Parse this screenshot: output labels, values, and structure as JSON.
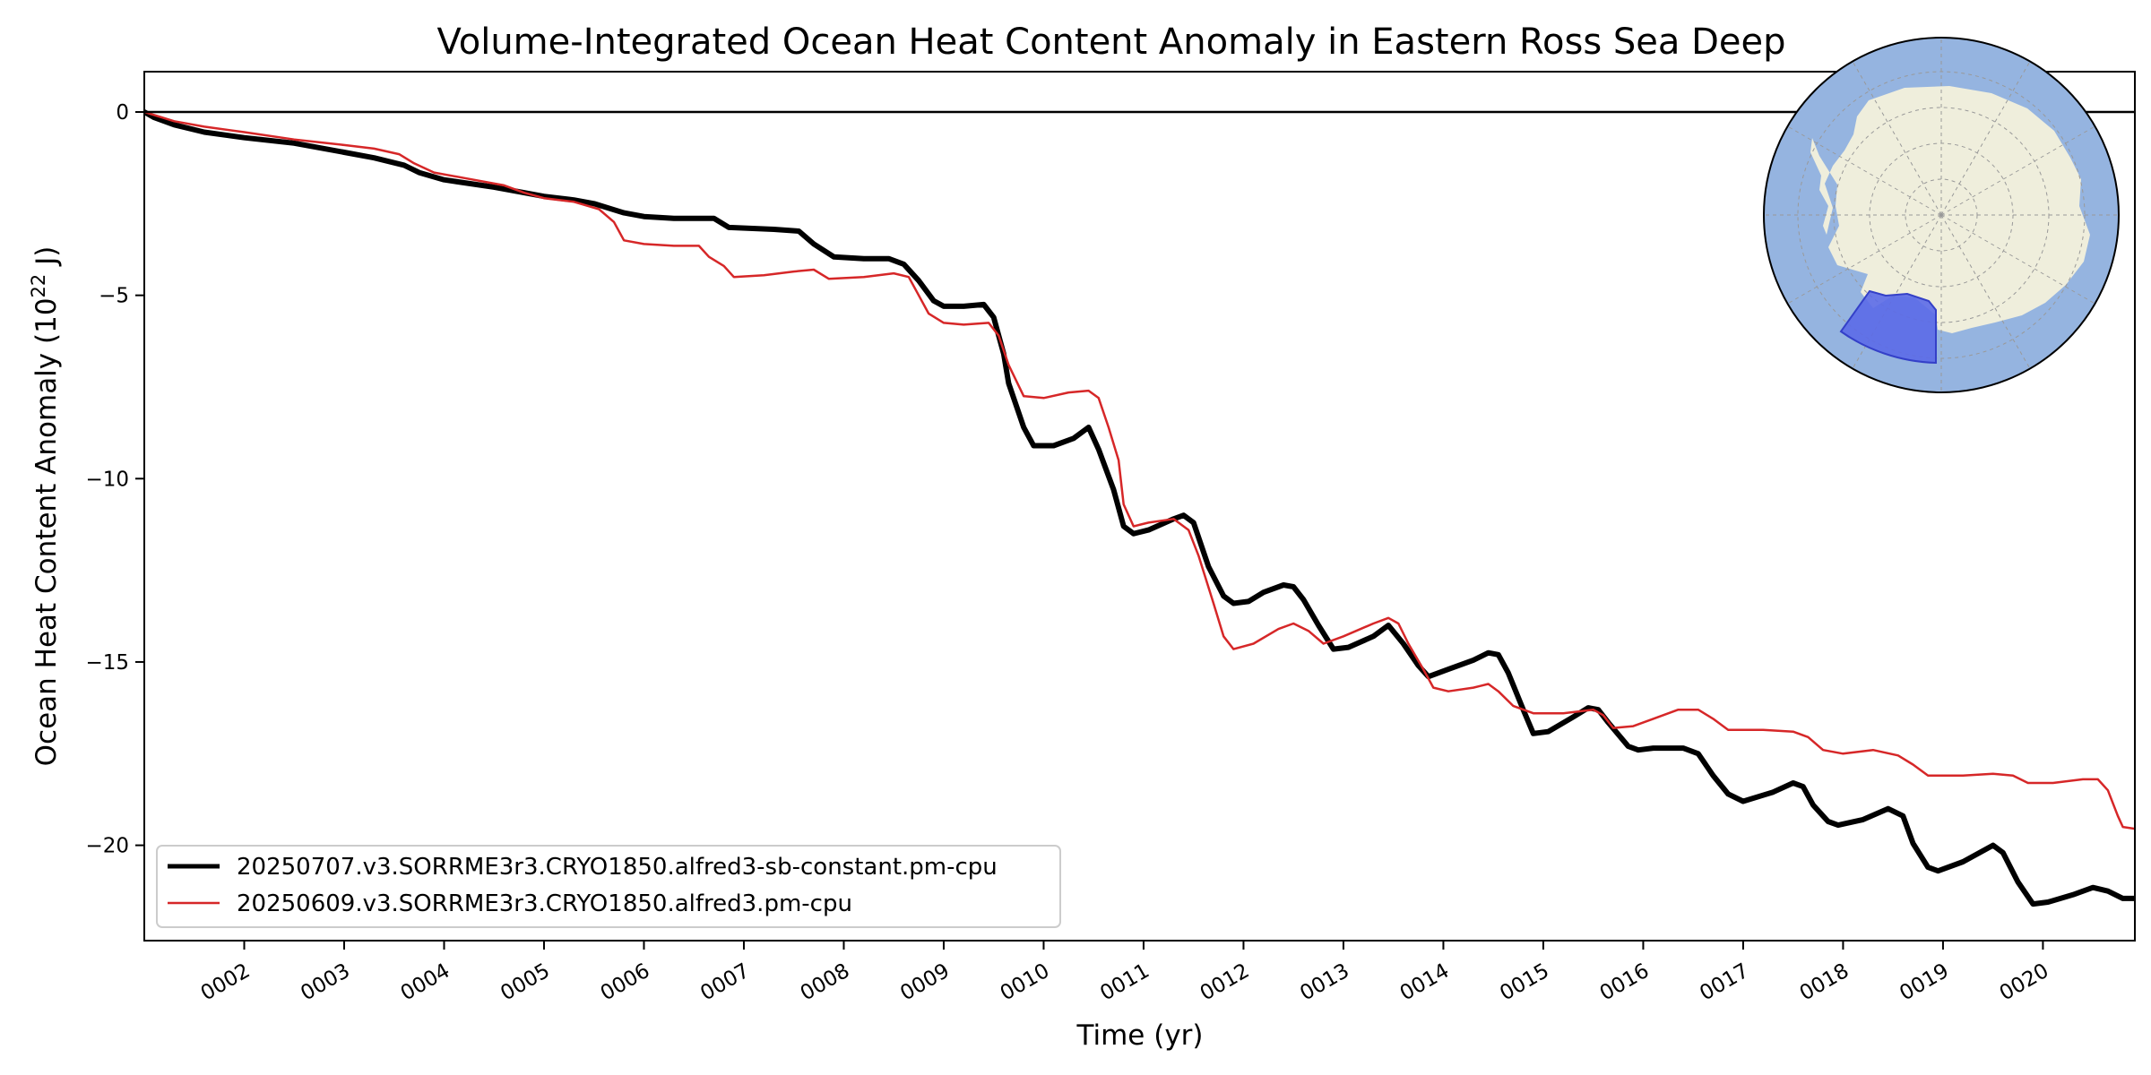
{
  "chart_data": {
    "type": "line",
    "title": "Volume-Integrated Ocean Heat Content Anomaly in Eastern Ross Sea Deep",
    "xlabel": "Time (yr)",
    "ylabel": "Ocean Heat Content Anomaly (10",
    "ylabel_exponent": "22",
    "ylabel_unit": " J)",
    "xlim": [
      1.0,
      20.92
    ],
    "ylim": [
      -22.6,
      1.1
    ],
    "x_ticks": [
      {
        "value": 2,
        "label": "0002"
      },
      {
        "value": 3,
        "label": "0003"
      },
      {
        "value": 4,
        "label": "0004"
      },
      {
        "value": 5,
        "label": "0005"
      },
      {
        "value": 6,
        "label": "0006"
      },
      {
        "value": 7,
        "label": "0007"
      },
      {
        "value": 8,
        "label": "0008"
      },
      {
        "value": 9,
        "label": "0009"
      },
      {
        "value": 10,
        "label": "0010"
      },
      {
        "value": 11,
        "label": "0011"
      },
      {
        "value": 12,
        "label": "0012"
      },
      {
        "value": 13,
        "label": "0013"
      },
      {
        "value": 14,
        "label": "0014"
      },
      {
        "value": 15,
        "label": "0015"
      },
      {
        "value": 16,
        "label": "0016"
      },
      {
        "value": 17,
        "label": "0017"
      },
      {
        "value": 18,
        "label": "0018"
      },
      {
        "value": 19,
        "label": "0019"
      },
      {
        "value": 20,
        "label": "0020"
      }
    ],
    "y_ticks": [
      {
        "value": 0,
        "label": "0"
      },
      {
        "value": -5,
        "label": "−5"
      },
      {
        "value": -10,
        "label": "−10"
      },
      {
        "value": -15,
        "label": "−15"
      },
      {
        "value": -20,
        "label": "−20"
      }
    ],
    "zero_line": true,
    "grid": false,
    "legend_position": "lower-left",
    "inset_map": {
      "projection": "south-polar-stereographic",
      "highlighted_region": "Eastern Ross Sea Deep"
    },
    "colors": {
      "ocean": "#95b4e0",
      "land": "#efeedc",
      "region": "#5b6ae8",
      "series1": "#000000",
      "series2": "#d62728"
    },
    "series": [
      {
        "name": "20250707.v3.SORRME3r3.CRYO1850.alfred3-sb-constant.pm-cpu",
        "color": "#000000",
        "points": [
          [
            1.0,
            0.0
          ],
          [
            1.1,
            -0.15
          ],
          [
            1.3,
            -0.35
          ],
          [
            1.6,
            -0.55
          ],
          [
            2.0,
            -0.7
          ],
          [
            2.5,
            -0.85
          ],
          [
            3.0,
            -1.1
          ],
          [
            3.3,
            -1.25
          ],
          [
            3.6,
            -1.45
          ],
          [
            3.75,
            -1.65
          ],
          [
            4.0,
            -1.85
          ],
          [
            4.5,
            -2.05
          ],
          [
            4.8,
            -2.2
          ],
          [
            5.0,
            -2.3
          ],
          [
            5.3,
            -2.4
          ],
          [
            5.5,
            -2.5
          ],
          [
            5.8,
            -2.75
          ],
          [
            6.0,
            -2.85
          ],
          [
            6.3,
            -2.9
          ],
          [
            6.7,
            -2.9
          ],
          [
            6.85,
            -3.15
          ],
          [
            7.3,
            -3.2
          ],
          [
            7.55,
            -3.25
          ],
          [
            7.7,
            -3.6
          ],
          [
            7.9,
            -3.95
          ],
          [
            8.2,
            -4.0
          ],
          [
            8.45,
            -4.0
          ],
          [
            8.6,
            -4.15
          ],
          [
            8.75,
            -4.6
          ],
          [
            8.9,
            -5.15
          ],
          [
            9.0,
            -5.3
          ],
          [
            9.2,
            -5.3
          ],
          [
            9.4,
            -5.25
          ],
          [
            9.5,
            -5.6
          ],
          [
            9.6,
            -6.6
          ],
          [
            9.65,
            -7.4
          ],
          [
            9.8,
            -8.6
          ],
          [
            9.9,
            -9.1
          ],
          [
            10.1,
            -9.1
          ],
          [
            10.3,
            -8.9
          ],
          [
            10.45,
            -8.6
          ],
          [
            10.55,
            -9.2
          ],
          [
            10.7,
            -10.3
          ],
          [
            10.8,
            -11.3
          ],
          [
            10.9,
            -11.5
          ],
          [
            11.05,
            -11.4
          ],
          [
            11.3,
            -11.1
          ],
          [
            11.4,
            -11.0
          ],
          [
            11.5,
            -11.2
          ],
          [
            11.65,
            -12.4
          ],
          [
            11.8,
            -13.2
          ],
          [
            11.9,
            -13.4
          ],
          [
            12.05,
            -13.35
          ],
          [
            12.2,
            -13.1
          ],
          [
            12.4,
            -12.9
          ],
          [
            12.5,
            -12.95
          ],
          [
            12.6,
            -13.3
          ],
          [
            12.75,
            -14.0
          ],
          [
            12.9,
            -14.65
          ],
          [
            13.05,
            -14.6
          ],
          [
            13.3,
            -14.3
          ],
          [
            13.45,
            -14.0
          ],
          [
            13.6,
            -14.5
          ],
          [
            13.75,
            -15.1
          ],
          [
            13.85,
            -15.4
          ],
          [
            14.05,
            -15.2
          ],
          [
            14.3,
            -14.95
          ],
          [
            14.45,
            -14.75
          ],
          [
            14.55,
            -14.8
          ],
          [
            14.65,
            -15.3
          ],
          [
            14.8,
            -16.3
          ],
          [
            14.9,
            -16.95
          ],
          [
            15.05,
            -16.9
          ],
          [
            15.3,
            -16.5
          ],
          [
            15.45,
            -16.25
          ],
          [
            15.55,
            -16.3
          ],
          [
            15.65,
            -16.65
          ],
          [
            15.85,
            -17.3
          ],
          [
            15.95,
            -17.4
          ],
          [
            16.1,
            -17.35
          ],
          [
            16.4,
            -17.35
          ],
          [
            16.55,
            -17.5
          ],
          [
            16.7,
            -18.1
          ],
          [
            16.85,
            -18.6
          ],
          [
            17.0,
            -18.8
          ],
          [
            17.3,
            -18.55
          ],
          [
            17.5,
            -18.3
          ],
          [
            17.6,
            -18.4
          ],
          [
            17.7,
            -18.9
          ],
          [
            17.85,
            -19.35
          ],
          [
            17.95,
            -19.45
          ],
          [
            18.2,
            -19.3
          ],
          [
            18.45,
            -19.0
          ],
          [
            18.6,
            -19.2
          ],
          [
            18.7,
            -19.95
          ],
          [
            18.85,
            -20.6
          ],
          [
            18.95,
            -20.7
          ],
          [
            19.2,
            -20.45
          ],
          [
            19.5,
            -20.0
          ],
          [
            19.6,
            -20.2
          ],
          [
            19.75,
            -21.0
          ],
          [
            19.9,
            -21.6
          ],
          [
            20.05,
            -21.55
          ],
          [
            20.3,
            -21.35
          ],
          [
            20.5,
            -21.15
          ],
          [
            20.65,
            -21.25
          ],
          [
            20.8,
            -21.45
          ],
          [
            20.92,
            -21.45
          ]
        ]
      },
      {
        "name": "20250609.v3.SORRME3r3.CRYO1850.alfred3.pm-cpu",
        "color": "#d62728",
        "points": [
          [
            1.0,
            0.0
          ],
          [
            1.3,
            -0.25
          ],
          [
            1.6,
            -0.4
          ],
          [
            2.0,
            -0.55
          ],
          [
            2.5,
            -0.75
          ],
          [
            3.0,
            -0.9
          ],
          [
            3.3,
            -1.0
          ],
          [
            3.55,
            -1.15
          ],
          [
            3.7,
            -1.4
          ],
          [
            3.9,
            -1.65
          ],
          [
            4.2,
            -1.8
          ],
          [
            4.6,
            -2.0
          ],
          [
            4.8,
            -2.2
          ],
          [
            5.0,
            -2.35
          ],
          [
            5.3,
            -2.45
          ],
          [
            5.55,
            -2.65
          ],
          [
            5.7,
            -3.0
          ],
          [
            5.8,
            -3.5
          ],
          [
            6.0,
            -3.6
          ],
          [
            6.3,
            -3.65
          ],
          [
            6.55,
            -3.65
          ],
          [
            6.65,
            -3.95
          ],
          [
            6.8,
            -4.2
          ],
          [
            6.9,
            -4.5
          ],
          [
            7.2,
            -4.45
          ],
          [
            7.5,
            -4.35
          ],
          [
            7.7,
            -4.3
          ],
          [
            7.85,
            -4.55
          ],
          [
            8.2,
            -4.5
          ],
          [
            8.5,
            -4.4
          ],
          [
            8.65,
            -4.5
          ],
          [
            8.75,
            -5.0
          ],
          [
            8.85,
            -5.5
          ],
          [
            9.0,
            -5.75
          ],
          [
            9.2,
            -5.8
          ],
          [
            9.45,
            -5.75
          ],
          [
            9.55,
            -6.1
          ],
          [
            9.65,
            -6.9
          ],
          [
            9.8,
            -7.75
          ],
          [
            10.0,
            -7.8
          ],
          [
            10.25,
            -7.65
          ],
          [
            10.45,
            -7.6
          ],
          [
            10.55,
            -7.8
          ],
          [
            10.65,
            -8.6
          ],
          [
            10.75,
            -9.5
          ],
          [
            10.8,
            -10.7
          ],
          [
            10.9,
            -11.3
          ],
          [
            11.05,
            -11.2
          ],
          [
            11.3,
            -11.1
          ],
          [
            11.45,
            -11.4
          ],
          [
            11.55,
            -12.1
          ],
          [
            11.7,
            -13.4
          ],
          [
            11.8,
            -14.3
          ],
          [
            11.9,
            -14.65
          ],
          [
            12.1,
            -14.5
          ],
          [
            12.35,
            -14.1
          ],
          [
            12.5,
            -13.95
          ],
          [
            12.65,
            -14.15
          ],
          [
            12.8,
            -14.5
          ],
          [
            13.0,
            -14.3
          ],
          [
            13.3,
            -13.95
          ],
          [
            13.45,
            -13.8
          ],
          [
            13.55,
            -13.95
          ],
          [
            13.65,
            -14.5
          ],
          [
            13.8,
            -15.2
          ],
          [
            13.9,
            -15.7
          ],
          [
            14.05,
            -15.8
          ],
          [
            14.3,
            -15.7
          ],
          [
            14.45,
            -15.6
          ],
          [
            14.55,
            -15.8
          ],
          [
            14.7,
            -16.2
          ],
          [
            14.9,
            -16.4
          ],
          [
            15.2,
            -16.4
          ],
          [
            15.5,
            -16.3
          ],
          [
            15.6,
            -16.45
          ],
          [
            15.7,
            -16.8
          ],
          [
            15.9,
            -16.75
          ],
          [
            16.1,
            -16.55
          ],
          [
            16.35,
            -16.3
          ],
          [
            16.55,
            -16.3
          ],
          [
            16.7,
            -16.55
          ],
          [
            16.85,
            -16.85
          ],
          [
            17.2,
            -16.85
          ],
          [
            17.5,
            -16.9
          ],
          [
            17.65,
            -17.05
          ],
          [
            17.8,
            -17.4
          ],
          [
            18.0,
            -17.5
          ],
          [
            18.3,
            -17.4
          ],
          [
            18.55,
            -17.55
          ],
          [
            18.7,
            -17.8
          ],
          [
            18.85,
            -18.1
          ],
          [
            19.2,
            -18.1
          ],
          [
            19.5,
            -18.05
          ],
          [
            19.7,
            -18.1
          ],
          [
            19.85,
            -18.3
          ],
          [
            20.1,
            -18.3
          ],
          [
            20.4,
            -18.2
          ],
          [
            20.55,
            -18.2
          ],
          [
            20.65,
            -18.5
          ],
          [
            20.75,
            -19.2
          ],
          [
            20.8,
            -19.5
          ],
          [
            20.92,
            -19.55
          ]
        ]
      }
    ]
  }
}
